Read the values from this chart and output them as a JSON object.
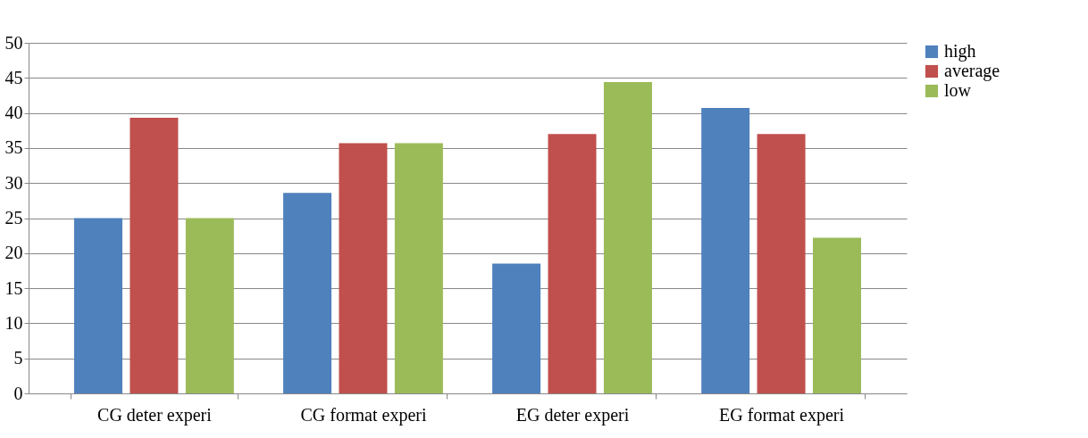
{
  "chart_data": {
    "type": "bar",
    "categories": [
      "CG deter experi",
      "CG format experi",
      "EG deter experi",
      "EG format experi"
    ],
    "series": [
      {
        "name": "high",
        "color": "#4f81bd",
        "values": [
          25,
          28.6,
          18.5,
          40.7
        ]
      },
      {
        "name": "average",
        "color": "#c0504d",
        "values": [
          39.3,
          35.7,
          37,
          37
        ]
      },
      {
        "name": "low",
        "color": "#9bbb59",
        "values": [
          25,
          35.7,
          44.4,
          22.2
        ]
      }
    ],
    "ylim": [
      0,
      50
    ],
    "yticks": [
      0,
      5,
      10,
      15,
      20,
      25,
      30,
      35,
      40,
      45,
      50
    ],
    "grid": "y",
    "legend": "right"
  }
}
